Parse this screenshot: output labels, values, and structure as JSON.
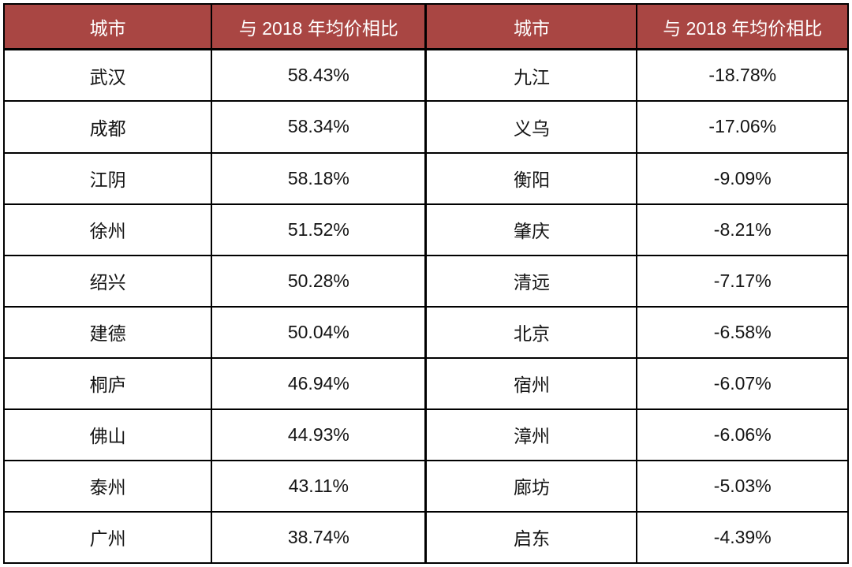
{
  "colors": {
    "header_bg": "#a94643",
    "header_text": "#ffffff",
    "border": "#000000",
    "body_text": "#141414",
    "page_bg": "#ffffff"
  },
  "chart_data": {
    "type": "table",
    "columns": [
      "城市",
      "与 2018 年均价相比",
      "城市",
      "与 2018 年均价相比"
    ],
    "rows": [
      [
        "武汉",
        "58.43%",
        "九江",
        "-18.78%"
      ],
      [
        "成都",
        "58.34%",
        "义乌",
        "-17.06%"
      ],
      [
        "江阴",
        "58.18%",
        "衡阳",
        "-9.09%"
      ],
      [
        "徐州",
        "51.52%",
        "肇庆",
        "-8.21%"
      ],
      [
        "绍兴",
        "50.28%",
        "清远",
        "-7.17%"
      ],
      [
        "建德",
        "50.04%",
        "北京",
        "-6.58%"
      ],
      [
        "桐庐",
        "46.94%",
        "宿州",
        "-6.07%"
      ],
      [
        "佛山",
        "44.93%",
        "漳州",
        "-6.06%"
      ],
      [
        "泰州",
        "43.11%",
        "廊坊",
        "-5.03%"
      ],
      [
        "广州",
        "38.74%",
        "启东",
        "-4.39%"
      ]
    ]
  }
}
